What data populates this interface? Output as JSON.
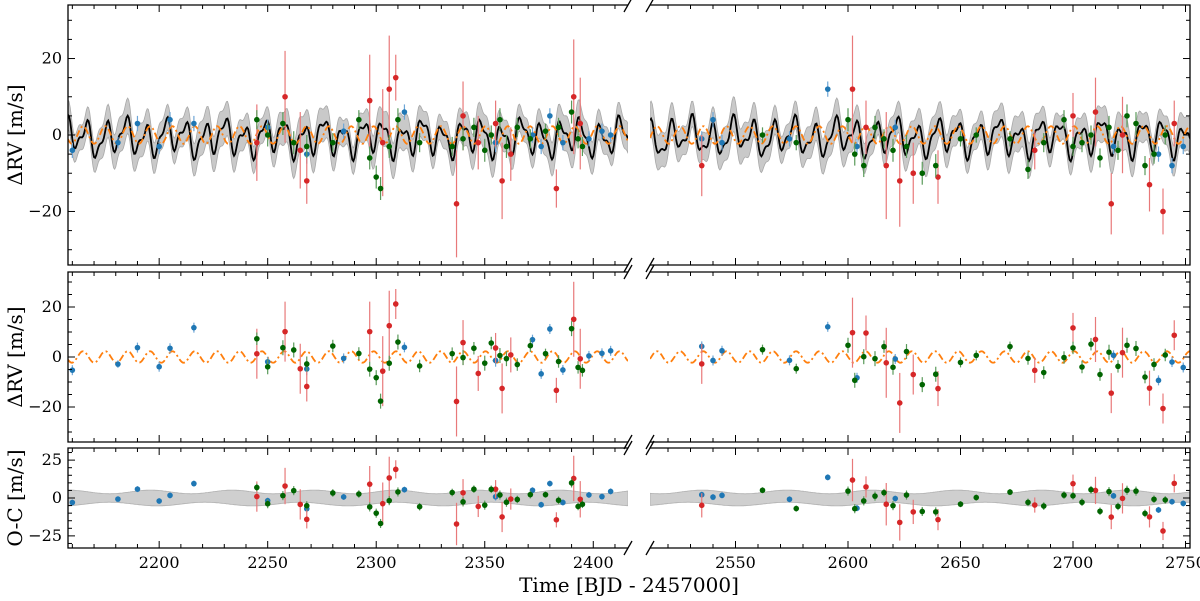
{
  "chart_data": {
    "type": "scatter",
    "xlabel": "Time [BJD - 2457000]",
    "x_segments": [
      {
        "range": [
          2158,
          2416
        ],
        "ticks": [
          2200,
          2250,
          2300,
          2350,
          2400
        ]
      },
      {
        "range": [
          2512,
          2752
        ],
        "ticks": [
          2550,
          2600,
          2650,
          2700,
          2750
        ]
      }
    ],
    "panels": [
      {
        "id": "rv-full",
        "ylabel": "ΔRV [m/s]",
        "ylim": [
          -34,
          34
        ],
        "yticks": [
          -20,
          0,
          20
        ],
        "ytick_labels": [
          "−20",
          "0",
          "20"
        ],
        "models": [
          "black-gp-with-grey-band",
          "orange-dash-dot-sinusoid"
        ]
      },
      {
        "id": "rv-planet",
        "ylabel": "ΔRV [m/s]",
        "ylim": [
          -34,
          34
        ],
        "yticks": [
          -20,
          0,
          20
        ],
        "ytick_labels": [
          "−20",
          "0",
          "20"
        ],
        "models": [
          "orange-dash-dot-sinusoid"
        ]
      },
      {
        "id": "residuals",
        "ylabel": "O-C [m/s]",
        "ylim": [
          -33,
          33
        ],
        "yticks": [
          -25,
          0,
          25
        ],
        "ytick_labels": [
          "−25",
          "0",
          "25"
        ],
        "models": [
          "grey-band"
        ]
      }
    ],
    "series": [
      {
        "color": "#1f77b4",
        "points": [
          [
            2160,
            -4,
            2
          ],
          [
            2181,
            -2,
            1.5
          ],
          [
            2190,
            3,
            2
          ],
          [
            2200,
            -3,
            2
          ],
          [
            2205,
            4,
            2
          ],
          [
            2216,
            3,
            2
          ],
          [
            2250,
            2,
            2
          ],
          [
            2268,
            -5,
            2.5
          ],
          [
            2285,
            1,
            2
          ],
          [
            2313,
            6,
            2
          ],
          [
            2355,
            -2,
            2.5
          ],
          [
            2372,
            0,
            2
          ],
          [
            2376,
            -3,
            2
          ],
          [
            2380,
            5,
            2
          ],
          [
            2386,
            -2,
            2
          ],
          [
            2398,
            -1,
            2
          ],
          [
            2404,
            1,
            2
          ],
          [
            2408,
            0,
            2
          ],
          [
            2535,
            -1,
            2
          ],
          [
            2540,
            4,
            2
          ],
          [
            2544,
            -2,
            2
          ],
          [
            2574,
            -1,
            2
          ],
          [
            2591,
            12,
            2
          ],
          [
            2604,
            -3,
            2
          ],
          [
            2621,
            2,
            2
          ],
          [
            2718,
            -3,
            2
          ],
          [
            2738,
            -5,
            2
          ],
          [
            2744,
            -8,
            2
          ],
          [
            2749,
            -3,
            2
          ]
        ]
      },
      {
        "color": "#d62728",
        "points": [
          [
            2245,
            -2,
            10
          ],
          [
            2258,
            10,
            12
          ],
          [
            2265,
            -4,
            10
          ],
          [
            2268,
            -12,
            6
          ],
          [
            2297,
            9,
            12
          ],
          [
            2303,
            -2,
            14
          ],
          [
            2306,
            12,
            14
          ],
          [
            2309,
            15,
            6
          ],
          [
            2337,
            -18,
            14
          ],
          [
            2340,
            5,
            9
          ],
          [
            2347,
            -2,
            7
          ],
          [
            2355,
            3,
            6
          ],
          [
            2358,
            -12,
            10
          ],
          [
            2362,
            -5,
            7
          ],
          [
            2383,
            -14,
            5
          ],
          [
            2391,
            10,
            15
          ],
          [
            2394,
            3,
            12
          ],
          [
            2535,
            -8,
            8
          ],
          [
            2602,
            12,
            14
          ],
          [
            2608,
            2,
            7
          ],
          [
            2617,
            -8,
            14
          ],
          [
            2623,
            -12,
            12
          ],
          [
            2629,
            -10,
            8
          ],
          [
            2640,
            -11,
            7
          ],
          [
            2683,
            -4,
            5
          ],
          [
            2700,
            5,
            6
          ],
          [
            2710,
            6,
            9
          ],
          [
            2717,
            -18,
            8
          ],
          [
            2722,
            0,
            10
          ],
          [
            2734,
            -13,
            7
          ],
          [
            2740,
            -20,
            6
          ],
          [
            2745,
            3,
            6
          ]
        ]
      },
      {
        "color": "#006400",
        "points": [
          [
            2245,
            4,
            2.5
          ],
          [
            2250,
            0,
            3
          ],
          [
            2257,
            3,
            3
          ],
          [
            2262,
            -2,
            3
          ],
          [
            2268,
            -3,
            3
          ],
          [
            2280,
            -2,
            2.5
          ],
          [
            2292,
            4,
            2.5
          ],
          [
            2297,
            -6,
            3
          ],
          [
            2300,
            -11,
            3
          ],
          [
            2302,
            -14,
            3
          ],
          [
            2306,
            -3,
            3
          ],
          [
            2310,
            4,
            3
          ],
          [
            2320,
            -2,
            2.5
          ],
          [
            2335,
            -3,
            2.5
          ],
          [
            2340,
            -1,
            3
          ],
          [
            2345,
            2,
            2.5
          ],
          [
            2350,
            -4,
            3
          ],
          [
            2353,
            0,
            2.5
          ],
          [
            2357,
            4,
            3
          ],
          [
            2360,
            -3,
            3
          ],
          [
            2365,
            2,
            2.5
          ],
          [
            2371,
            -1,
            2.5
          ],
          [
            2378,
            1,
            2
          ],
          [
            2384,
            2,
            2.5
          ],
          [
            2390,
            6,
            3
          ],
          [
            2393,
            -1,
            2.5
          ],
          [
            2395,
            -3,
            2.5
          ],
          [
            2562,
            0,
            2
          ],
          [
            2577,
            -2,
            2
          ],
          [
            2600,
            4,
            3
          ],
          [
            2603,
            -5,
            3
          ],
          [
            2607,
            -8,
            3
          ],
          [
            2612,
            2,
            3
          ],
          [
            2616,
            -1,
            2.5
          ],
          [
            2620,
            -4,
            3
          ],
          [
            2626,
            -3,
            3
          ],
          [
            2633,
            -10,
            3
          ],
          [
            2639,
            -8,
            3
          ],
          [
            2650,
            -1,
            2
          ],
          [
            2657,
            0,
            2
          ],
          [
            2672,
            -1,
            2
          ],
          [
            2680,
            -9,
            2.5
          ],
          [
            2687,
            -2,
            2.5
          ],
          [
            2696,
            4,
            2.5
          ],
          [
            2700,
            -3,
            2.5
          ],
          [
            2704,
            -2,
            2.5
          ],
          [
            2708,
            0,
            2.5
          ],
          [
            2712,
            -6,
            2.5
          ],
          [
            2716,
            2,
            3
          ],
          [
            2720,
            -4,
            2.5
          ],
          [
            2724,
            5,
            3
          ],
          [
            2728,
            3,
            3
          ],
          [
            2732,
            -8,
            2.5
          ],
          [
            2736,
            -5,
            2.5
          ],
          [
            2741,
            0,
            2.5
          ]
        ]
      }
    ]
  }
}
